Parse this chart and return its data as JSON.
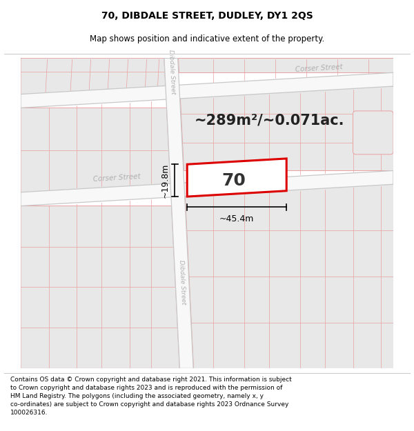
{
  "title": "70, DIBDALE STREET, DUDLEY, DY1 2QS",
  "subtitle": "Map shows position and indicative extent of the property.",
  "footer": "Contains OS data © Crown copyright and database right 2021. This information is subject\nto Crown copyright and database rights 2023 and is reproduced with the permission of\nHM Land Registry. The polygons (including the associated geometry, namely x, y\nco-ordinates) are subject to Crown copyright and database rights 2023 Ordnance Survey\n100026316.",
  "title_fontsize": 10,
  "subtitle_fontsize": 8.5,
  "footer_fontsize": 6.5,
  "area_text": "~289m²/~0.071ac.",
  "property_label": "70",
  "width_label": "~45.4m",
  "height_label": "~19.8m",
  "corser_label_upper": "Corser Street",
  "corser_label_lower": "Corser Street",
  "dibdale_label_upper": "Dibdale Street",
  "dibdale_label_lower": "Dibdale Street",
  "bg_color": "#ffffff",
  "block_fill": "#e8e8e8",
  "block_edge": "#e8a0a0",
  "road_fill": "#f8f8f8",
  "road_edge": "#c8c8c8",
  "street_color": "#b0b0b0",
  "property_color": "#dd0000",
  "dim_color": "#000000",
  "area_color": "#222222"
}
